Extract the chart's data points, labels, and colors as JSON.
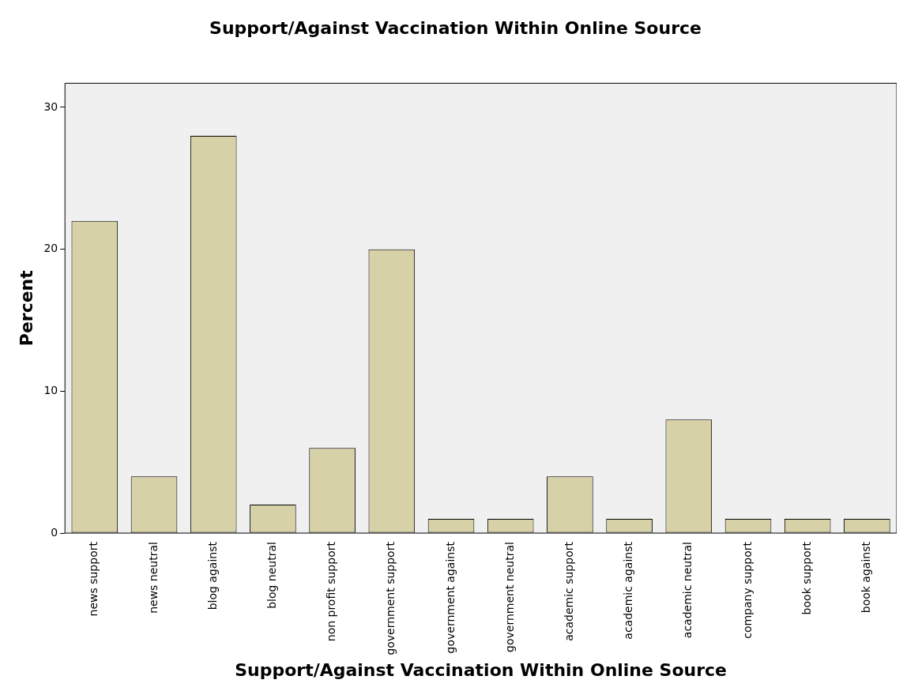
{
  "chart_data": {
    "type": "bar",
    "title": "Support/Against Vaccination Within Online Source",
    "xlabel": "Support/Against Vaccination Within Online Source",
    "ylabel": "Percent",
    "categories": [
      "news support",
      "news neutral",
      "blog against",
      "blog neutral",
      "non profit support",
      "government support",
      "government against",
      "government neutral",
      "academic support",
      "academic against",
      "academic neutral",
      "company support",
      "book support",
      "book against"
    ],
    "values": [
      22,
      4,
      28,
      2,
      6,
      20,
      1,
      1,
      4,
      1,
      8,
      1,
      1,
      1
    ],
    "color": "#d6d1a6",
    "ylim": [
      0,
      31.7
    ],
    "yticks": [
      0,
      10,
      20,
      30
    ],
    "grid": false,
    "legend": false
  }
}
